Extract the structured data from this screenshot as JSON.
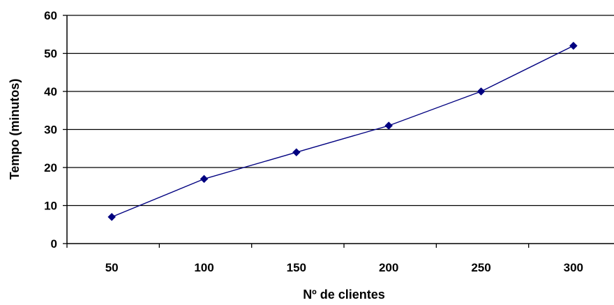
{
  "chart_data": {
    "type": "line",
    "title": "",
    "xlabel": "Nº de clientes",
    "ylabel": "Tempo (minutos)",
    "categories": [
      "50",
      "100",
      "150",
      "200",
      "250",
      "300"
    ],
    "y_ticks": [
      "0",
      "10",
      "20",
      "30",
      "40",
      "50",
      "60"
    ],
    "ylim": [
      0,
      60
    ],
    "grid": "horizontal",
    "legend": "none",
    "series": [
      {
        "values": [
          7,
          17,
          24,
          31,
          40,
          52
        ],
        "color": "#000080",
        "marker": "diamond"
      }
    ]
  }
}
